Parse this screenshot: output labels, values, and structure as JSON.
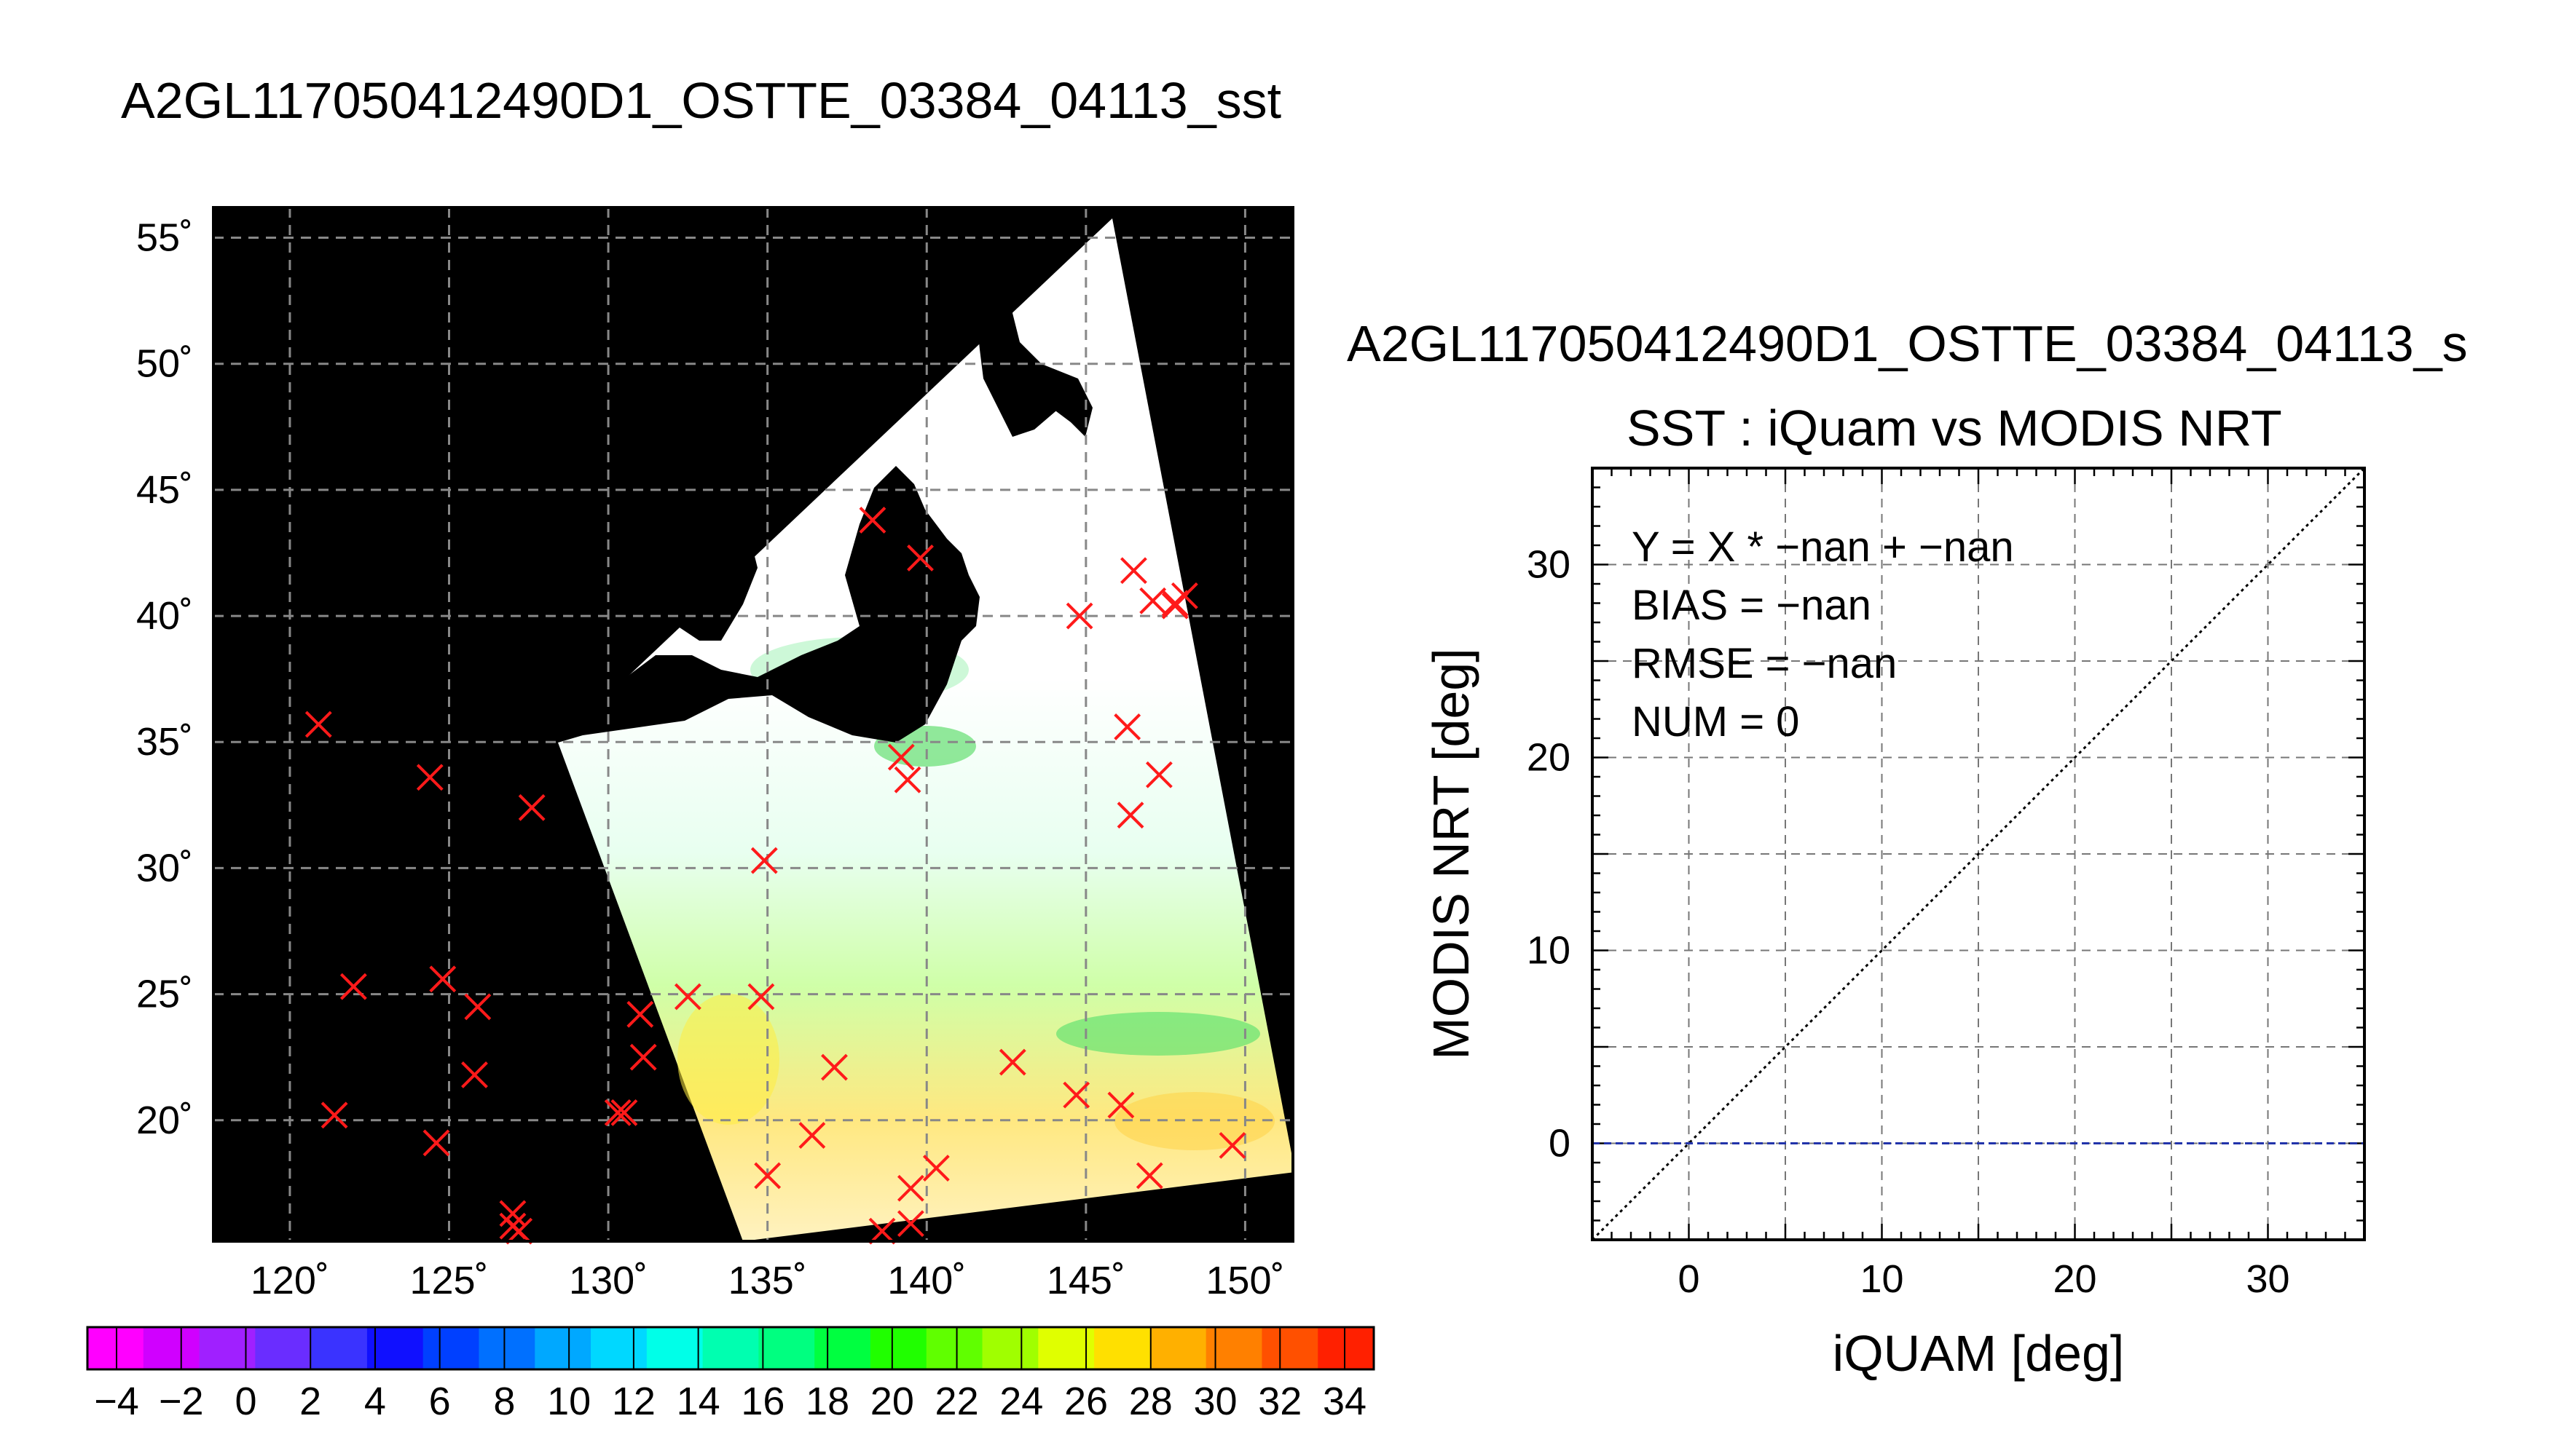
{
  "title_left": "A2GL117050412490D1_OSTTE_03384_04113_sst",
  "title_right": "A2GL117050412490D1_OSTTE_03384_04113_s",
  "colors": {
    "marker": "#ff1a1a",
    "bias_line": "#2233aa",
    "map_bg": "#000000"
  },
  "colorbar": {
    "ticks": [
      "−4",
      "−2",
      "0",
      "2",
      "4",
      "6",
      "8",
      "10",
      "12",
      "14",
      "16",
      "18",
      "20",
      "22",
      "24",
      "26",
      "28",
      "30",
      "32",
      "34"
    ],
    "colors": [
      "#ff00ff",
      "#d000ff",
      "#a020ff",
      "#6a2dff",
      "#3a33ff",
      "#1010ff",
      "#0040ff",
      "#0070ff",
      "#00a8ff",
      "#00d8ff",
      "#00ffe8",
      "#00ffb0",
      "#00ff80",
      "#00ff40",
      "#20ff00",
      "#60ff00",
      "#a0ff00",
      "#e0ff00",
      "#ffe000",
      "#ffb000",
      "#ff8000",
      "#ff5000",
      "#ff2000"
    ]
  },
  "chart_data": [
    {
      "type": "scatter",
      "title": "A2GL117050412490D1_OSTTE_03384_04113_sst",
      "x_tick_labels": [
        "120˚",
        "125˚",
        "130˚",
        "135˚",
        "140˚",
        "145˚",
        "150˚"
      ],
      "y_tick_labels": [
        "20˚",
        "25˚",
        "30˚",
        "35˚",
        "40˚",
        "45˚",
        "50˚",
        "55˚"
      ],
      "x_ticks": [
        120,
        125,
        130,
        135,
        140,
        145,
        150
      ],
      "y_ticks": [
        20,
        25,
        30,
        35,
        40,
        45,
        50,
        55
      ],
      "xlim": [
        117.6,
        151.5
      ],
      "ylim": [
        15.2,
        56.2
      ],
      "grid": true,
      "series": [
        {
          "marker": "x",
          "x": [
            120.9,
            124.4,
            127.6,
            122.0,
            124.8,
            125.9,
            125.8,
            121.4,
            124.6,
            127.0,
            127.0,
            127.2,
            130.3,
            130.5,
            131.0,
            131.1,
            132.5,
            134.8,
            134.9,
            135.0,
            136.4,
            137.1,
            138.6,
            139.2,
            139.4,
            139.5,
            139.5,
            140.3,
            142.7,
            144.7,
            146.1,
            147.0,
            149.6,
            138.3,
            139.8,
            146.3,
            146.4,
            147.3,
            146.5,
            147.1,
            147.8,
            148.1,
            147.8,
            144.8
          ],
          "y": [
            35.7,
            33.6,
            32.4,
            25.3,
            25.6,
            24.5,
            21.8,
            20.2,
            19.1,
            16.3,
            15.8,
            15.6,
            20.3,
            20.3,
            24.2,
            22.5,
            24.9,
            24.9,
            30.3,
            17.8,
            19.4,
            22.1,
            15.6,
            34.4,
            33.5,
            17.3,
            15.9,
            18.1,
            22.3,
            21.0,
            20.6,
            17.8,
            19.0,
            43.8,
            42.3,
            35.6,
            32.1,
            33.7,
            41.8,
            40.6,
            40.5,
            40.8,
            40.4,
            40.0
          ]
        }
      ]
    },
    {
      "type": "line",
      "title": "SST : iQuam vs MODIS NRT",
      "xlabel": "iQUAM [deg]",
      "ylabel": "MODIS NRT [deg]",
      "xlim": [
        -5,
        35
      ],
      "ylim": [
        -5,
        35
      ],
      "x_ticks": [
        0,
        10,
        20,
        30
      ],
      "y_ticks": [
        0,
        10,
        20,
        30
      ],
      "grid": true,
      "annotations": [
        "Y = X * −nan + −nan",
        "BIAS = −nan",
        "RMSE = −nan",
        "NUM = 0"
      ],
      "series": [
        {
          "style": "dotted",
          "color": "#000000",
          "x": [
            -5,
            35
          ],
          "y": [
            -5,
            35
          ]
        },
        {
          "style": "dashed",
          "color": "#2233aa",
          "x": [
            -5,
            35
          ],
          "y": [
            0,
            0
          ]
        }
      ]
    }
  ]
}
